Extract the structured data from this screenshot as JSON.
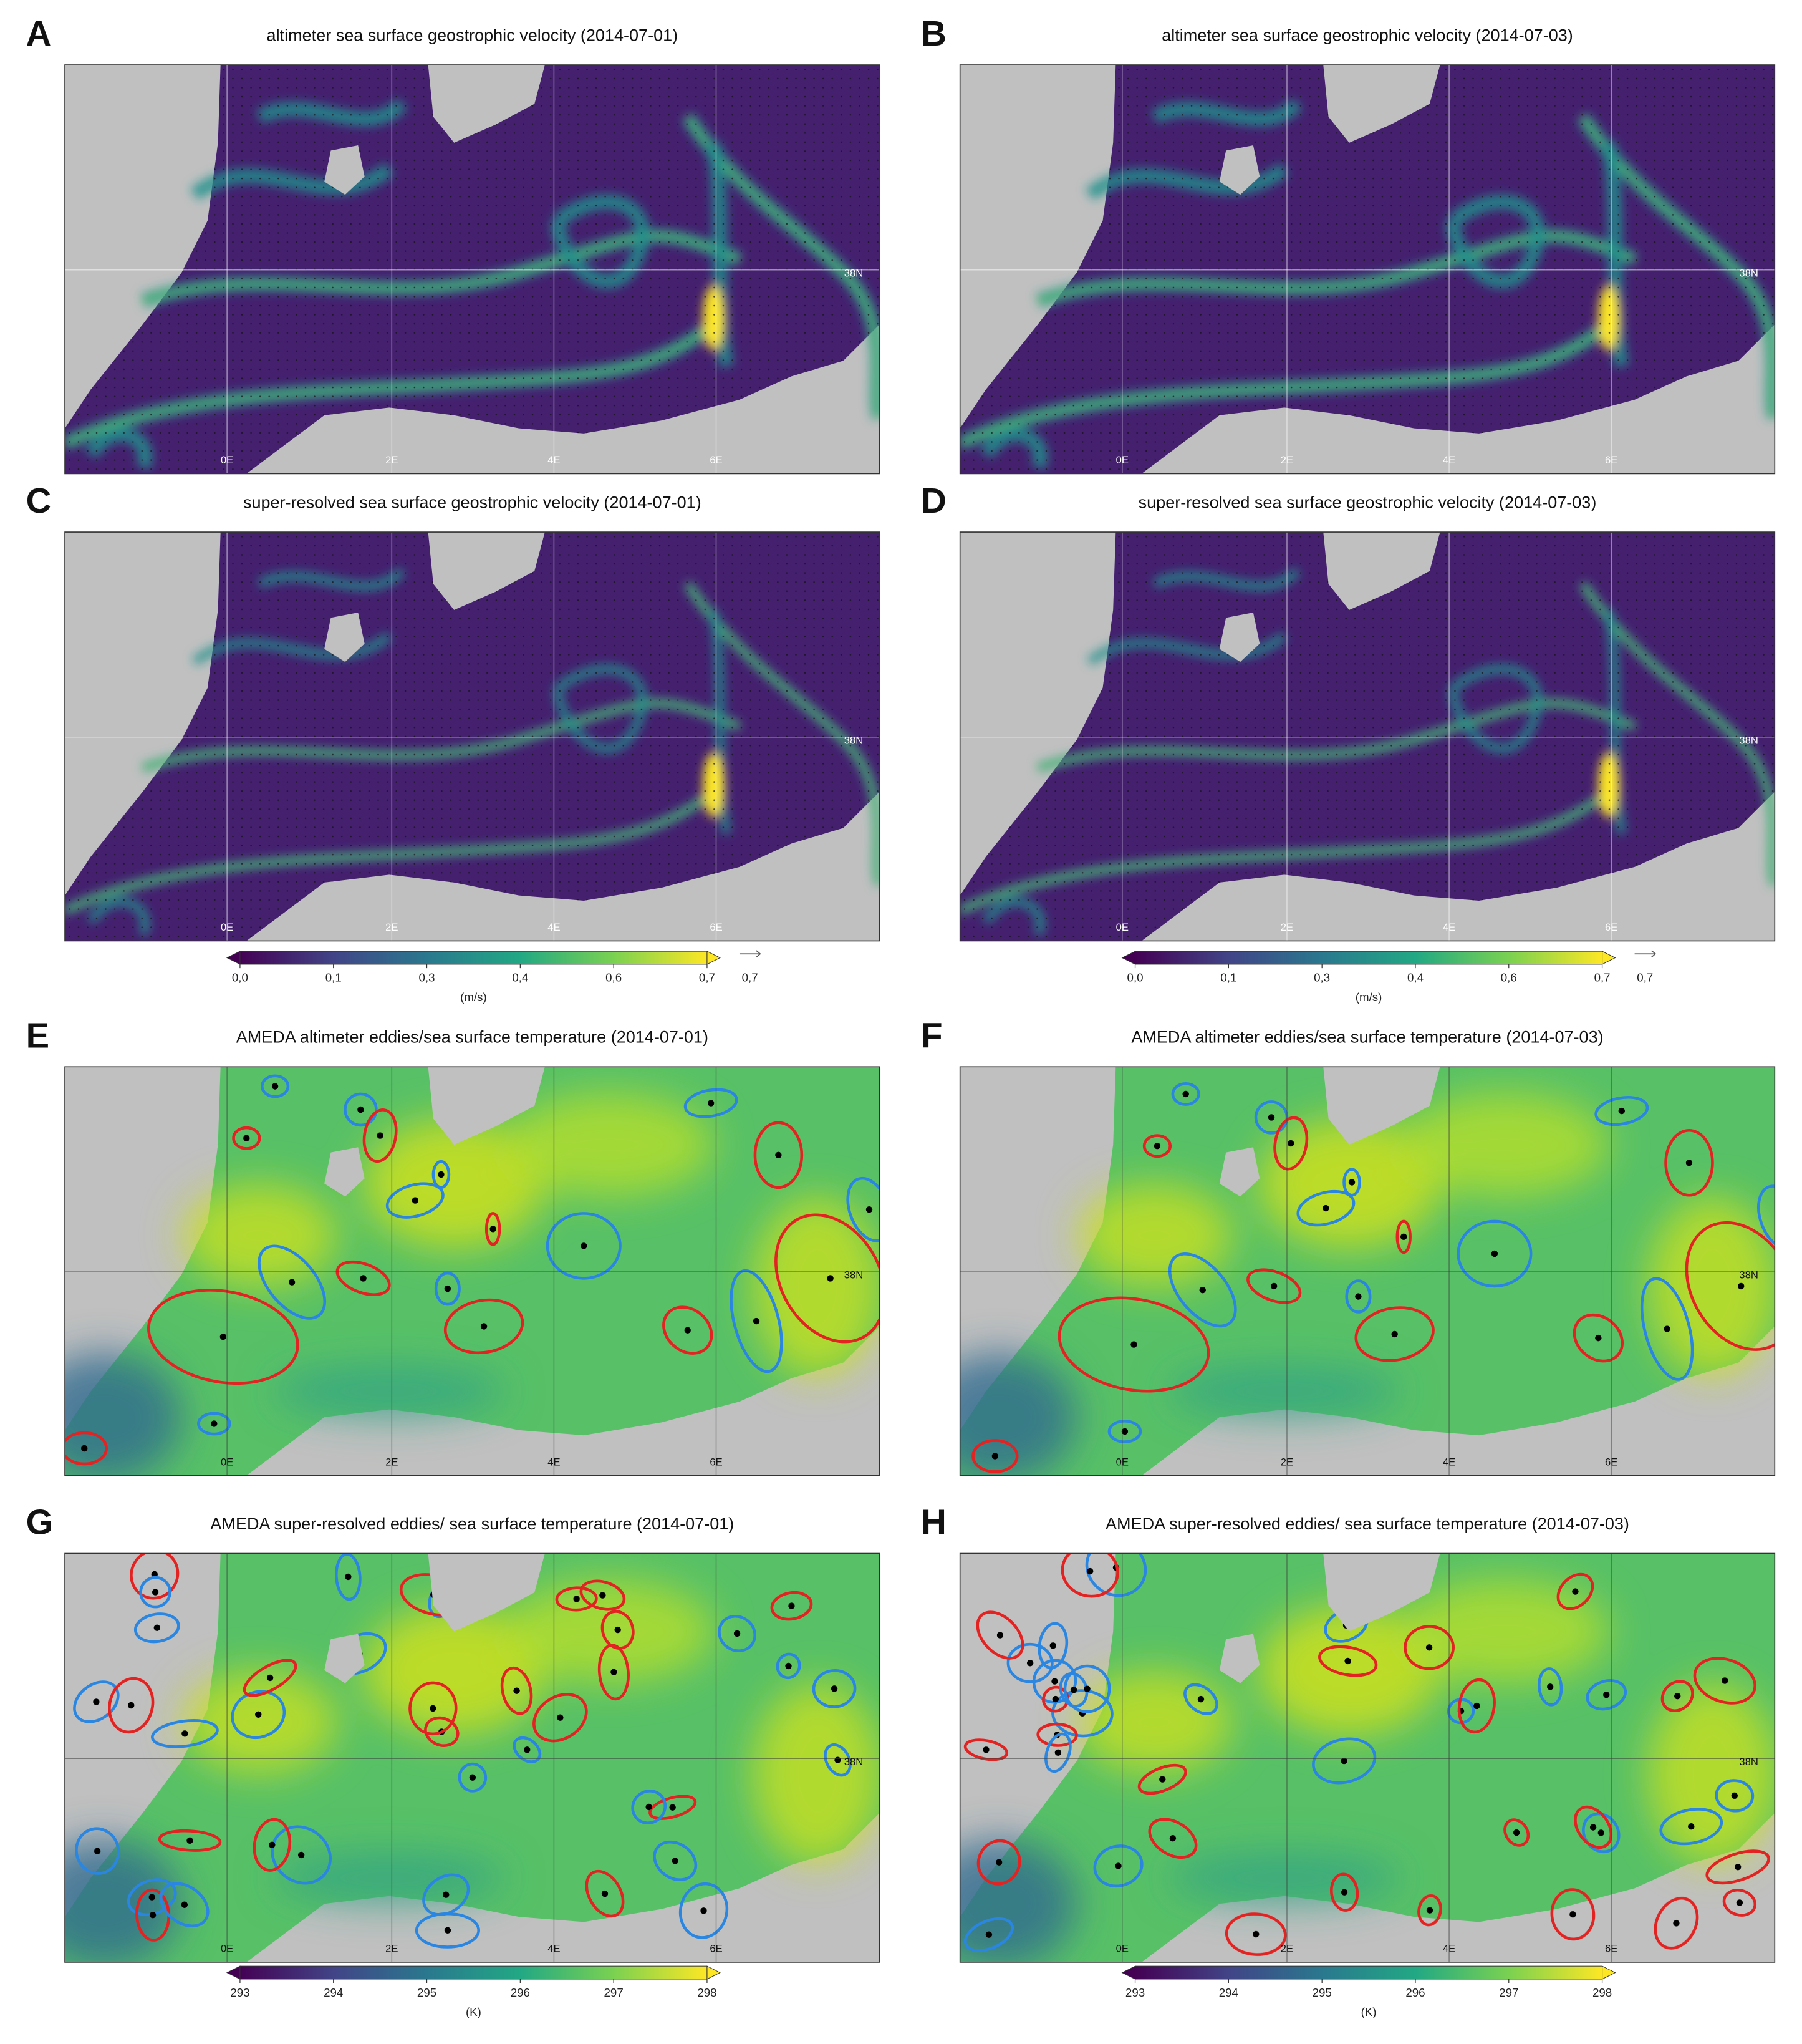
{
  "panels": [
    {
      "letter": "A",
      "title": "altimeter sea surface geostrophic velocity (2014-07-01)",
      "lon_labels": [
        "0E",
        "2E",
        "4E",
        "6E"
      ],
      "lat_label": "38N"
    },
    {
      "letter": "B",
      "title": "altimeter sea surface geostrophic velocity (2014-07-03)",
      "lon_labels": [
        "0E",
        "2E",
        "4E",
        "6E"
      ],
      "lat_label": "38N"
    },
    {
      "letter": "C",
      "title": "super-resolved sea surface geostrophic velocity (2014-07-01)",
      "lon_labels": [
        "0E",
        "2E",
        "4E",
        "6E"
      ],
      "lat_label": "38N"
    },
    {
      "letter": "D",
      "title": "super-resolved sea surface geostrophic velocity (2014-07-03)",
      "lon_labels": [
        "0E",
        "2E",
        "4E",
        "6E"
      ],
      "lat_label": "38N"
    },
    {
      "letter": "E",
      "title": "AMEDA altimeter eddies/sea surface temperature (2014-07-01)",
      "lon_labels": [
        "0E",
        "2E",
        "4E",
        "6E"
      ],
      "lat_label": "38N"
    },
    {
      "letter": "F",
      "title": "AMEDA altimeter eddies/sea surface temperature (2014-07-03)",
      "lon_labels": [
        "0E",
        "2E",
        "4E",
        "6E"
      ],
      "lat_label": "38N"
    },
    {
      "letter": "G",
      "title": "AMEDA super-resolved eddies/ sea surface temperature (2014-07-01)",
      "lon_labels": [
        "0E",
        "2E",
        "4E",
        "6E"
      ],
      "lat_label": "38N"
    },
    {
      "letter": "H",
      "title": "AMEDA super-resolved eddies/ sea surface temperature (2014-07-03)",
      "lon_labels": [
        "0E",
        "2E",
        "4E",
        "6E"
      ],
      "lat_label": "38N"
    }
  ],
  "colorbars": [
    {
      "range": [
        0,
        0.7
      ],
      "ticks": [
        {
          "value": 0,
          "label": "0,0"
        },
        {
          "value": 0.14,
          "label": "0,1"
        },
        {
          "value": 0.28,
          "label": "0,3"
        },
        {
          "value": 0.42,
          "label": "0,4"
        },
        {
          "value": 0.56,
          "label": "0,6"
        },
        {
          "value": 0.7,
          "label": "0,7"
        }
      ],
      "unit": "(m/s)",
      "reference_vector": {
        "value": 0.7,
        "label": "0,7"
      }
    },
    {
      "range": [
        293,
        298
      ],
      "ticks": [
        293,
        294,
        295,
        296,
        297,
        298
      ],
      "unit": "(K)"
    }
  ]
}
